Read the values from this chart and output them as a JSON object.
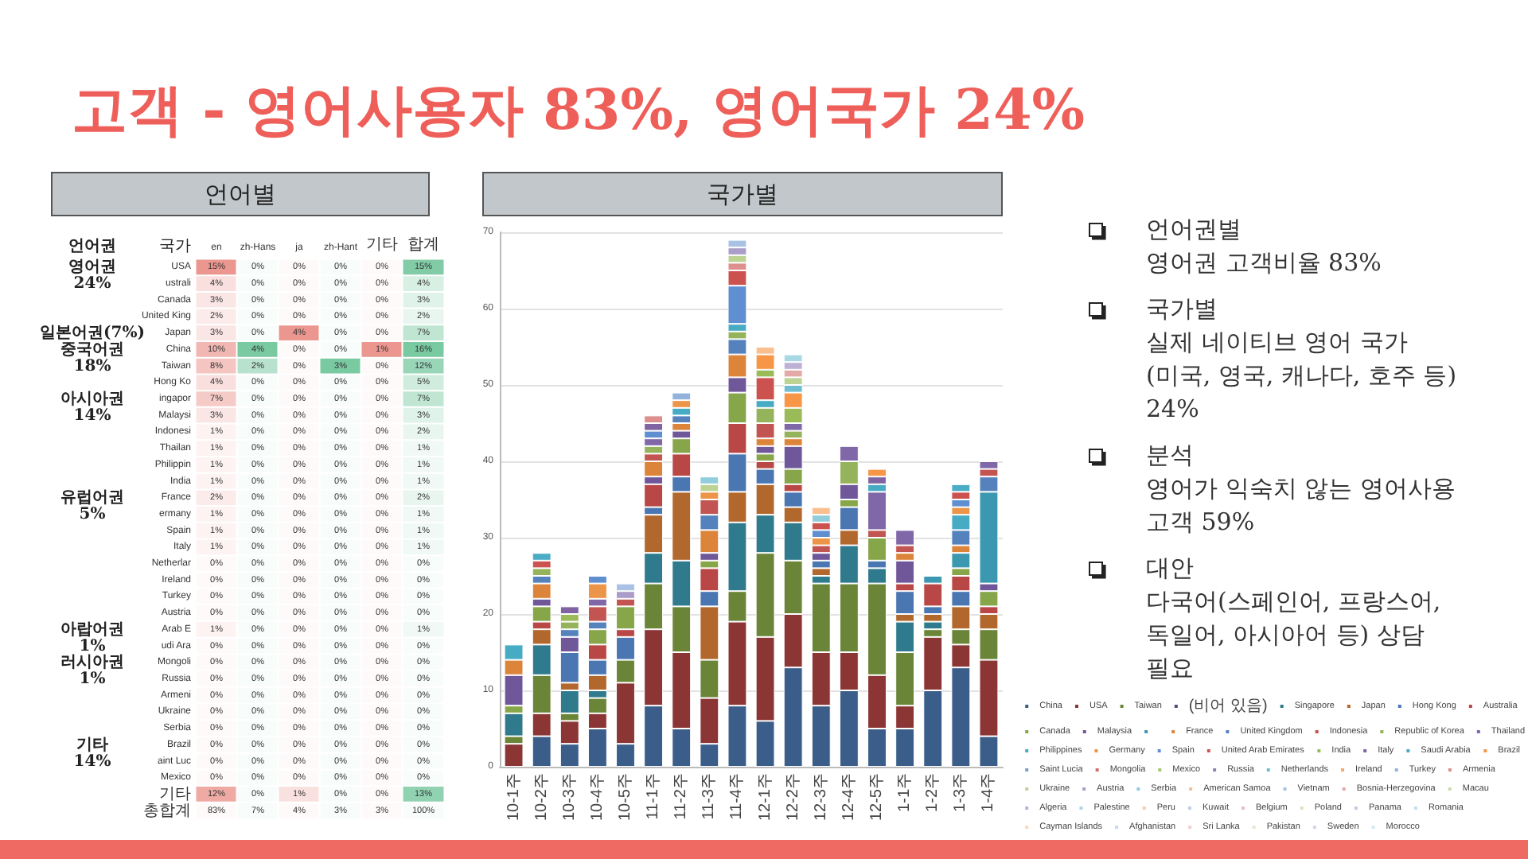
{
  "chart_data": [
    {
      "type": "other",
      "title": "고객 - 영어사용자 83%, 영어국가 24%"
    },
    {
      "type": "heatmap",
      "title": "언어별",
      "ylabel": "국가",
      "categories": [
        "en",
        "zh-Hans",
        "ja",
        "zh-Hant",
        "기타",
        "합계"
      ],
      "y_categories": [
        "USA",
        "ustrali",
        "Canada",
        "United King",
        "Japan",
        "China",
        "Taiwan",
        "Hong Ko",
        "ingapor",
        "Malaysi",
        "Indonesi",
        "Thailan",
        "Philippin",
        "India",
        "France",
        "ermany",
        "Spain",
        "Italy",
        "Netherlar",
        "Ireland",
        "Turkey",
        "Austria",
        "Arab E",
        "udi Ara",
        "Mongoli",
        "Russia",
        "Armeni",
        "Ukraine",
        "Serbia",
        "Brazil",
        "aint Luc",
        "Mexico",
        "기타",
        "총합계"
      ],
      "y2_categories": [
        "영어권",
        "24%",
        null,
        null,
        "일본어권(7%)",
        "중국어권",
        "18%",
        null,
        "아시아권",
        "14%",
        null,
        null,
        null,
        null,
        "유럽어권",
        "5%",
        null,
        null,
        null,
        null,
        null,
        null,
        "아랍어권",
        "1%",
        "러시아권",
        "1%",
        null,
        null,
        null,
        "기타",
        "14%",
        null,
        null,
        null
      ],
      "cells": [
        [
          15,
          0,
          0,
          0,
          0,
          15
        ],
        [
          4,
          0,
          0,
          0,
          0,
          4
        ],
        [
          3,
          0,
          0,
          0,
          0,
          3
        ],
        [
          2,
          0,
          0,
          0,
          0,
          2
        ],
        [
          3,
          0,
          4,
          0,
          0,
          7
        ],
        [
          10,
          4,
          0,
          0,
          1,
          16
        ],
        [
          8,
          2,
          0,
          3,
          0,
          12
        ],
        [
          4,
          0,
          0,
          0,
          0,
          5
        ],
        [
          7,
          0,
          0,
          0,
          0,
          7
        ],
        [
          3,
          0,
          0,
          0,
          0,
          3
        ],
        [
          1,
          0,
          0,
          0,
          0,
          2
        ],
        [
          1,
          0,
          0,
          0,
          0,
          1
        ],
        [
          1,
          0,
          0,
          0,
          0,
          1
        ],
        [
          1,
          0,
          0,
          0,
          0,
          1
        ],
        [
          2,
          0,
          0,
          0,
          0,
          2
        ],
        [
          1,
          0,
          0,
          0,
          0,
          1
        ],
        [
          1,
          0,
          0,
          0,
          0,
          1
        ],
        [
          1,
          0,
          0,
          0,
          0,
          1
        ],
        [
          0,
          0,
          0,
          0,
          0,
          0
        ],
        [
          0,
          0,
          0,
          0,
          0,
          0
        ],
        [
          0,
          0,
          0,
          0,
          0,
          0
        ],
        [
          0,
          0,
          0,
          0,
          0,
          0
        ],
        [
          1,
          0,
          0,
          0,
          0,
          1
        ],
        [
          0,
          0,
          0,
          0,
          0,
          0
        ],
        [
          0,
          0,
          0,
          0,
          0,
          0
        ],
        [
          0,
          0,
          0,
          0,
          0,
          0
        ],
        [
          0,
          0,
          0,
          0,
          0,
          0
        ],
        [
          0,
          0,
          0,
          0,
          0,
          0
        ],
        [
          0,
          0,
          0,
          0,
          0,
          0
        ],
        [
          0,
          0,
          0,
          0,
          0,
          0
        ],
        [
          0,
          0,
          0,
          0,
          0,
          0
        ],
        [
          0,
          0,
          0,
          0,
          0,
          0
        ],
        [
          12,
          0,
          1,
          0,
          0,
          13
        ],
        [
          83,
          7,
          4,
          3,
          3,
          100
        ]
      ],
      "cell_labels": [
        [
          "15%",
          "0%",
          "0%",
          "0%",
          "0%",
          "15%"
        ],
        [
          "4%",
          "0%",
          "0%",
          "0%",
          "0%",
          "4%"
        ],
        [
          "3%",
          "0%",
          "0%",
          "0%",
          "0%",
          "3%"
        ],
        [
          "2%",
          "0%",
          "0%",
          "0%",
          "0%",
          "2%"
        ],
        [
          "3%",
          "0%",
          "4%",
          "0%",
          "0%",
          "7%"
        ],
        [
          "10%",
          "4%",
          "0%",
          "0%",
          "1%",
          "16%"
        ],
        [
          "8%",
          "2%",
          "0%",
          "3%",
          "0%",
          "12%"
        ],
        [
          "4%",
          "0%",
          "0%",
          "0%",
          "0%",
          "5%"
        ],
        [
          "7%",
          "0%",
          "0%",
          "0%",
          "0%",
          "7%"
        ],
        [
          "3%",
          "0%",
          "0%",
          "0%",
          "0%",
          "3%"
        ],
        [
          "1%",
          "0%",
          "0%",
          "0%",
          "0%",
          "2%"
        ],
        [
          "1%",
          "0%",
          "0%",
          "0%",
          "0%",
          "1%"
        ],
        [
          "1%",
          "0%",
          "0%",
          "0%",
          "0%",
          "1%"
        ],
        [
          "1%",
          "0%",
          "0%",
          "0%",
          "0%",
          "1%"
        ],
        [
          "2%",
          "0%",
          "0%",
          "0%",
          "0%",
          "2%"
        ],
        [
          "1%",
          "0%",
          "0%",
          "0%",
          "0%",
          "1%"
        ],
        [
          "1%",
          "0%",
          "0%",
          "0%",
          "0%",
          "1%"
        ],
        [
          "1%",
          "0%",
          "0%",
          "0%",
          "0%",
          "1%"
        ],
        [
          "0%",
          "0%",
          "0%",
          "0%",
          "0%",
          "0%"
        ],
        [
          "0%",
          "0%",
          "0%",
          "0%",
          "0%",
          "0%"
        ],
        [
          "0%",
          "0%",
          "0%",
          "0%",
          "0%",
          "0%"
        ],
        [
          "0%",
          "0%",
          "0%",
          "0%",
          "0%",
          "0%"
        ],
        [
          "1%",
          "0%",
          "0%",
          "0%",
          "0%",
          "1%"
        ],
        [
          "0%",
          "0%",
          "0%",
          "0%",
          "0%",
          "0%"
        ],
        [
          "0%",
          "0%",
          "0%",
          "0%",
          "0%",
          "0%"
        ],
        [
          "0%",
          "0%",
          "0%",
          "0%",
          "0%",
          "0%"
        ],
        [
          "0%",
          "0%",
          "0%",
          "0%",
          "0%",
          "0%"
        ],
        [
          "0%",
          "0%",
          "0%",
          "0%",
          "0%",
          "0%"
        ],
        [
          "0%",
          "0%",
          "0%",
          "0%",
          "0%",
          "0%"
        ],
        [
          "0%",
          "0%",
          "0%",
          "0%",
          "0%",
          "0%"
        ],
        [
          "0%",
          "0%",
          "0%",
          "0%",
          "0%",
          "0%"
        ],
        [
          "0%",
          "0%",
          "0%",
          "0%",
          "0%",
          "0%"
        ],
        [
          "12%",
          "0%",
          "1%",
          "0%",
          "0%",
          "13%"
        ],
        [
          "83%",
          "7%",
          "4%",
          "3%",
          "3%",
          "100%"
        ]
      ],
      "colors": [
        "#e67c73",
        "#57bb8a",
        "#e67c73",
        "#57bb8a",
        "#e67c73",
        "#57bb8a"
      ],
      "annotations": [
        "언어권"
      ]
    },
    {
      "type": "bar",
      "title": "국가별",
      "categories": [
        "10-1주",
        "10-2주",
        "10-3주",
        "10-4주",
        "10-5주",
        "11-1주",
        "11-2주",
        "11-3주",
        "11-4주",
        "12-1주",
        "12-2주",
        "12-3주",
        "12-4주",
        "12-5주",
        "1-1주",
        "1-2주",
        "1-3주",
        "1-4주"
      ],
      "stacked": true,
      "ylim": [
        0,
        70
      ],
      "yticks": [
        0,
        10,
        20,
        30,
        40,
        50,
        60,
        70
      ],
      "grid": "y",
      "legend": "bottom right",
      "series": [
        {
          "name": "China",
          "color": "#3b5d8a",
          "values": [
            null,
            4,
            3,
            5,
            3,
            8,
            5,
            3,
            8,
            6,
            13,
            8,
            10,
            5,
            5,
            10,
            13,
            4
          ]
        },
        {
          "name": "USA",
          "color": "#8c3535",
          "values": [
            3,
            3,
            3,
            2,
            8,
            10,
            10,
            6,
            11,
            11,
            7,
            7,
            5,
            7,
            3,
            7,
            3,
            10
          ]
        },
        {
          "name": "Taiwan",
          "color": "#6b8538",
          "values": [
            1,
            5,
            1,
            2,
            3,
            6,
            6,
            5,
            4,
            11,
            7,
            9,
            9,
            12,
            7,
            1,
            2,
            4
          ]
        },
        {
          "name": "(비어 있음)",
          "color": "#5b4782",
          "values": [
            null,
            null,
            null,
            null,
            null,
            null,
            null,
            null,
            null,
            null,
            null,
            null,
            null,
            null,
            null,
            null,
            null,
            null
          ]
        },
        {
          "name": "Singapore",
          "color": "#2f7a8c",
          "values": [
            3,
            4,
            3,
            1,
            null,
            4,
            6,
            null,
            9,
            5,
            5,
            1,
            5,
            2,
            4,
            1,
            null,
            null
          ]
        },
        {
          "name": "Japan",
          "color": "#b2682c",
          "values": [
            null,
            2,
            1,
            2,
            null,
            5,
            9,
            7,
            4,
            4,
            2,
            1,
            2,
            null,
            1,
            1,
            3,
            2
          ]
        },
        {
          "name": "Hong Kong",
          "color": "#4a76b2",
          "values": [
            null,
            null,
            4,
            2,
            3,
            1,
            2,
            2,
            5,
            2,
            2,
            1,
            3,
            1,
            3,
            1,
            2,
            null
          ]
        },
        {
          "name": "Australia",
          "color": "#b94745",
          "values": [
            null,
            1,
            null,
            2,
            1,
            3,
            3,
            3,
            4,
            1,
            1,
            null,
            null,
            null,
            1,
            3,
            2,
            1
          ]
        },
        {
          "name": "Canada",
          "color": "#87a64a",
          "values": [
            1,
            2,
            null,
            2,
            3,
            null,
            2,
            1,
            4,
            1,
            2,
            null,
            1,
            3,
            null,
            null,
            1,
            2
          ]
        },
        {
          "name": "Malaysia",
          "color": "#70579a",
          "values": [
            4,
            1,
            2,
            null,
            null,
            1,
            1,
            1,
            2,
            1,
            3,
            1,
            2,
            null,
            3,
            null,
            null,
            1
          ]
        },
        {
          "color": "#3b98b0",
          "values": [
            null,
            null,
            null,
            null,
            null,
            null,
            null,
            null,
            null,
            null,
            null,
            null,
            null,
            null,
            null,
            1,
            2,
            12
          ]
        },
        {
          "name": "France",
          "color": "#dd843b",
          "values": [
            2,
            2,
            null,
            null,
            null,
            2,
            1,
            3,
            3,
            1,
            1,
            null,
            null,
            null,
            1,
            null,
            1,
            null
          ]
        },
        {
          "name": "United Kingdom",
          "color": "#5582bd",
          "values": [
            null,
            1,
            1,
            1,
            null,
            null,
            1,
            2,
            2,
            null,
            null,
            null,
            null,
            null,
            null,
            null,
            2,
            2
          ]
        },
        {
          "name": "Indonesia",
          "color": "#c25552",
          "values": [
            null,
            null,
            null,
            2,
            1,
            1,
            null,
            2,
            null,
            2,
            null,
            1,
            null,
            1,
            1,
            null,
            null,
            1
          ]
        },
        {
          "name": "Republic of Korea",
          "color": "#95b35a",
          "values": [
            null,
            1,
            1,
            null,
            null,
            1,
            null,
            null,
            1,
            2,
            1,
            null,
            3,
            null,
            null,
            null,
            null,
            null
          ]
        },
        {
          "name": "Thailand",
          "color": "#7f67a8",
          "values": [
            null,
            null,
            null,
            1,
            null,
            1,
            null,
            null,
            null,
            null,
            1,
            null,
            2,
            5,
            2,
            null,
            null,
            1
          ]
        },
        {
          "name": "Philippines",
          "color": "#48abc4",
          "values": [
            2,
            null,
            null,
            null,
            null,
            null,
            1,
            null,
            1,
            1,
            null,
            null,
            null,
            1,
            null,
            null,
            2,
            null
          ]
        },
        {
          "name": "Germany",
          "color": "#ec9447",
          "values": [
            null,
            null,
            null,
            2,
            null,
            null,
            1,
            1,
            null,
            null,
            null,
            1,
            null,
            null,
            null,
            null,
            1,
            null
          ]
        },
        {
          "name": "Spain",
          "color": "#5f8fd0",
          "values": [
            null,
            null,
            null,
            1,
            null,
            1,
            null,
            null,
            5,
            null,
            null,
            1,
            null,
            null,
            null,
            null,
            1,
            null
          ]
        },
        {
          "name": "United Arab Emirates",
          "color": "#cc5250",
          "values": [
            null,
            1,
            null,
            null,
            null,
            null,
            null,
            null,
            2,
            3,
            null,
            1,
            null,
            null,
            null,
            null,
            1,
            null
          ]
        },
        {
          "name": "India",
          "color": "#9bbb59",
          "values": [
            null,
            null,
            1,
            null,
            null,
            null,
            null,
            null,
            null,
            1,
            2,
            null,
            null,
            null,
            null,
            null,
            null,
            null
          ]
        },
        {
          "name": "Italy",
          "color": "#8064a2",
          "values": [
            null,
            null,
            1,
            null,
            null,
            1,
            null,
            null,
            null,
            null,
            null,
            null,
            null,
            1,
            null,
            null,
            null,
            null
          ]
        },
        {
          "name": "Saudi Arabia",
          "color": "#4bacc6",
          "values": [
            null,
            1,
            null,
            null,
            null,
            null,
            null,
            null,
            null,
            null,
            null,
            null,
            null,
            null,
            null,
            null,
            1,
            null
          ]
        },
        {
          "name": "Brazil",
          "color": "#f79646",
          "values": [
            null,
            null,
            null,
            null,
            null,
            null,
            null,
            null,
            null,
            2,
            2,
            null,
            null,
            1,
            null,
            null,
            null,
            null
          ]
        },
        {
          "name": "Saint Lucia",
          "color": "#7a9fd3",
          "values": [
            null,
            null,
            null,
            null,
            null,
            null,
            null,
            null,
            null,
            null,
            null,
            null,
            null,
            null,
            null,
            null,
            null,
            null
          ]
        },
        {
          "name": "Mongolia",
          "color": "#d46e6c",
          "values": [
            null,
            null,
            null,
            null,
            null,
            null,
            null,
            null,
            null,
            null,
            null,
            null,
            null,
            null,
            null,
            null,
            null,
            null
          ]
        },
        {
          "name": "Mexico",
          "color": "#a9c572",
          "values": [
            null,
            null,
            null,
            null,
            null,
            null,
            null,
            null,
            null,
            null,
            null,
            null,
            null,
            null,
            null,
            null,
            null,
            null
          ]
        },
        {
          "name": "Russia",
          "color": "#9480b5",
          "values": [
            null,
            null,
            null,
            null,
            null,
            null,
            null,
            null,
            null,
            null,
            null,
            null,
            null,
            null,
            null,
            null,
            null,
            null
          ]
        },
        {
          "name": "Netherlands",
          "color": "#6fbdd1",
          "values": [
            null,
            null,
            null,
            null,
            null,
            null,
            null,
            null,
            null,
            null,
            1,
            null,
            null,
            null,
            null,
            null,
            null,
            null
          ]
        },
        {
          "name": "Ireland",
          "color": "#f8a96b",
          "values": [
            null,
            null,
            null,
            null,
            null,
            null,
            null,
            null,
            null,
            null,
            null,
            null,
            null,
            null,
            null,
            null,
            null,
            null
          ]
        },
        {
          "name": "Turkey",
          "color": "#94b3dc",
          "values": [
            null,
            null,
            null,
            null,
            null,
            null,
            1,
            null,
            null,
            null,
            null,
            null,
            null,
            null,
            null,
            null,
            null,
            null
          ]
        },
        {
          "name": "Armenia",
          "color": "#dc8f8d",
          "values": [
            null,
            null,
            null,
            null,
            null,
            1,
            null,
            null,
            1,
            null,
            null,
            null,
            null,
            null,
            null,
            null,
            null,
            null
          ]
        },
        {
          "name": "Ukraine",
          "color": "#bcd394",
          "values": [
            null,
            null,
            null,
            null,
            null,
            null,
            null,
            1,
            1,
            null,
            1,
            null,
            null,
            null,
            null,
            null,
            null,
            null
          ]
        },
        {
          "name": "Austria",
          "color": "#ab9dc8",
          "values": [
            null,
            null,
            null,
            null,
            1,
            null,
            null,
            null,
            1,
            null,
            null,
            null,
            null,
            null,
            null,
            null,
            null,
            null
          ]
        },
        {
          "name": "Serbia",
          "color": "#92cddc",
          "values": [
            null,
            null,
            null,
            null,
            null,
            null,
            null,
            1,
            null,
            null,
            null,
            1,
            null,
            null,
            null,
            null,
            null,
            null
          ]
        },
        {
          "name": "American Samoa",
          "color": "#fabf8f",
          "values": [
            null,
            null,
            null,
            null,
            null,
            null,
            null,
            null,
            null,
            1,
            null,
            1,
            null,
            null,
            null,
            null,
            null,
            null
          ]
        },
        {
          "name": "Vietnam",
          "color": "#a9c2e3",
          "values": [
            null,
            null,
            null,
            null,
            1,
            null,
            null,
            null,
            1,
            null,
            null,
            null,
            null,
            null,
            null,
            null,
            null,
            null
          ]
        },
        {
          "name": "Bosnia-Herzegovina",
          "color": "#e3a9a7",
          "values": [
            null,
            null,
            null,
            null,
            null,
            null,
            null,
            null,
            null,
            null,
            1,
            null,
            null,
            null,
            null,
            null,
            null,
            null
          ]
        },
        {
          "name": "Macau",
          "color": "#cadcaa",
          "values": [
            null,
            null,
            null,
            null,
            null,
            null,
            null,
            null,
            null,
            null,
            null,
            null,
            null,
            null,
            null,
            null,
            null,
            null
          ]
        },
        {
          "name": "Algeria",
          "color": "#bdb2d5",
          "values": [
            null,
            null,
            null,
            null,
            null,
            null,
            null,
            null,
            null,
            null,
            1,
            null,
            null,
            null,
            null,
            null,
            null,
            null
          ]
        },
        {
          "name": "Palestine",
          "color": "#a9d8e5",
          "values": [
            null,
            null,
            null,
            null,
            null,
            null,
            null,
            null,
            null,
            null,
            1,
            null,
            null,
            null,
            null,
            null,
            null,
            null
          ]
        },
        {
          "name": "Peru",
          "color": "#fbcca8",
          "values": [
            null,
            null,
            null,
            null,
            null,
            null,
            null,
            null,
            null,
            null,
            null,
            null,
            null,
            null,
            null,
            null,
            null,
            null
          ]
        },
        {
          "name": "Kuwait",
          "color": "#bccfe8",
          "values": [
            null,
            null,
            null,
            null,
            null,
            null,
            null,
            null,
            null,
            null,
            null,
            null,
            null,
            null,
            null,
            null,
            null,
            null
          ]
        },
        {
          "name": "Belgium",
          "color": "#e9bdbc",
          "values": [
            null,
            null,
            null,
            null,
            null,
            null,
            null,
            null,
            null,
            null,
            null,
            null,
            null,
            null,
            null,
            null,
            null,
            null
          ]
        },
        {
          "name": "Poland",
          "color": "#d7e5c0",
          "values": [
            null,
            null,
            null,
            null,
            null,
            null,
            null,
            null,
            null,
            null,
            null,
            null,
            null,
            null,
            null,
            null,
            null,
            null
          ]
        },
        {
          "name": "Panama",
          "color": "#cdc4de",
          "values": [
            null,
            null,
            null,
            null,
            null,
            null,
            null,
            null,
            null,
            null,
            null,
            null,
            null,
            null,
            null,
            null,
            null,
            null
          ]
        },
        {
          "name": "Romania",
          "color": "#c0e2eb",
          "values": [
            null,
            null,
            null,
            null,
            null,
            null,
            null,
            null,
            null,
            null,
            null,
            null,
            null,
            null,
            null,
            null,
            null,
            null
          ]
        },
        {
          "name": "Cayman Islands",
          "color": "#fcd8bd",
          "values": [
            null,
            null,
            null,
            null,
            null,
            null,
            null,
            null,
            null,
            null,
            null,
            null,
            null,
            null,
            null,
            null,
            null,
            null
          ]
        },
        {
          "name": "Afghanistan",
          "color": "#ccd9ee",
          "values": [
            null,
            null,
            null,
            null,
            null,
            null,
            null,
            null,
            null,
            null,
            null,
            null,
            null,
            null,
            null,
            null,
            null,
            null
          ]
        },
        {
          "name": "Sri Lanka",
          "color": "#efcfce",
          "values": [
            null,
            null,
            null,
            null,
            null,
            null,
            null,
            null,
            null,
            null,
            null,
            null,
            null,
            null,
            null,
            null,
            null,
            null
          ]
        },
        {
          "name": "Pakistan",
          "color": "#e1ebcf",
          "values": [
            null,
            null,
            null,
            null,
            null,
            null,
            null,
            null,
            null,
            null,
            null,
            null,
            null,
            null,
            null,
            null,
            null,
            null
          ]
        },
        {
          "name": "Sweden",
          "color": "#d9d2e6",
          "values": [
            null,
            null,
            null,
            null,
            null,
            null,
            null,
            null,
            null,
            null,
            null,
            null,
            null,
            null,
            null,
            null,
            null,
            null
          ]
        },
        {
          "name": "Morocco",
          "color": "#d3eaf1",
          "values": [
            null,
            null,
            null,
            null,
            null,
            null,
            null,
            null,
            null,
            null,
            null,
            null,
            null,
            null,
            null,
            null,
            null,
            null
          ]
        }
      ]
    },
    {
      "type": "other",
      "annotations": [
        "언어권별\n영어권 고객비율 83%",
        "국가별\n실제 네이티브 영어 국가\n(미국, 영국, 캐나다, 호주 등)\n24%",
        "분석\n영어가 익숙치 않는 영어사용\n고객 59%",
        "대안\n다국어(스페인어, 프랑스어,\n독일어, 아시아어 등) 상담\n필요"
      ]
    }
  ]
}
